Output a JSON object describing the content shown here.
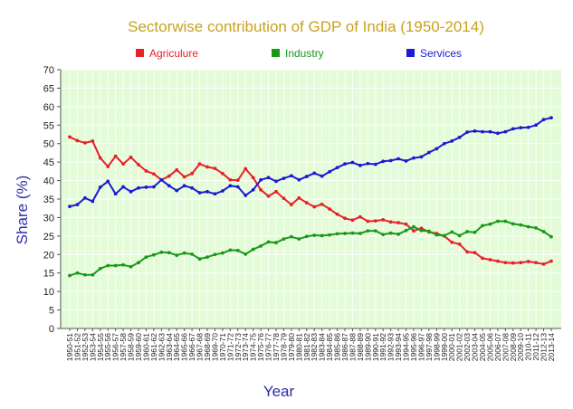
{
  "chart_data": {
    "type": "line",
    "title": "Sectorwise contribution of GDP of India (1950-2014)",
    "xlabel": "Year",
    "ylabel": "Share (%)",
    "ylim": [
      0,
      70
    ],
    "yticks": [
      0,
      5,
      10,
      15,
      20,
      25,
      30,
      35,
      40,
      45,
      50,
      55,
      60,
      65,
      70
    ],
    "grid": true,
    "legend_position": "top",
    "colors": {
      "title": "#c8a21e",
      "axis_label": "#2c2ca8",
      "plot_background": "#e4fbd8",
      "grid": "#ffffff"
    },
    "categories": [
      "1950-51",
      "1951-52",
      "1952-53",
      "1953-54",
      "1954-55",
      "1955-56",
      "1956-57",
      "1957-58",
      "1958-59",
      "1959-60",
      "1960-61",
      "1961-62",
      "1962-63",
      "1963-64",
      "1964-65",
      "1965-66",
      "1966-67",
      "1967-68",
      "1968-69",
      "1969-70",
      "1970-71",
      "1971-72",
      "1972-73",
      "1973-74",
      "1974-75",
      "1975-76",
      "1976-77",
      "1977-78",
      "1978-79",
      "1979-80",
      "1980-81",
      "1981-82",
      "1982-83",
      "1983-84",
      "1984-85",
      "1985-86",
      "1986-87",
      "1987-88",
      "1988-89",
      "1989-90",
      "1990-91",
      "1991-92",
      "1992-93",
      "1993-94",
      "1994-95",
      "1995-96",
      "1996-97",
      "1997-98",
      "1998-99",
      "1999-00",
      "2000-01",
      "2001-02",
      "2002-03",
      "2003-04",
      "2004-05",
      "2005-06",
      "2006-07",
      "2007-08",
      "2008-09",
      "2009-10",
      "2010-11",
      "2011-12",
      "2012-13",
      "2013-14"
    ],
    "series": [
      {
        "name": "Agriculure",
        "color": "#e8202a",
        "values": [
          51.8,
          50.8,
          50.2,
          50.7,
          46.1,
          43.8,
          46.6,
          44.5,
          46.3,
          44.3,
          42.6,
          41.8,
          40.2,
          41.2,
          42.9,
          41.0,
          41.9,
          44.5,
          43.7,
          43.3,
          41.9,
          40.2,
          40.1,
          43.2,
          40.8,
          37.5,
          35.8,
          37.0,
          35.2,
          33.5,
          35.3,
          34.0,
          32.9,
          33.6,
          32.3,
          30.9,
          29.8,
          29.3,
          30.2,
          29.0,
          29.1,
          29.4,
          28.8,
          28.6,
          28.2,
          26.4,
          27.1,
          26.1,
          25.7,
          25.0,
          23.3,
          22.8,
          20.7,
          20.5,
          19.0,
          18.6,
          18.2,
          17.8,
          17.7,
          17.8,
          18.1,
          17.8,
          17.4,
          18.2
        ]
      },
      {
        "name": "Industry",
        "color": "#189a18",
        "values": [
          14.3,
          15.0,
          14.5,
          14.5,
          16.2,
          17.0,
          17.0,
          17.2,
          16.7,
          17.8,
          19.3,
          19.9,
          20.6,
          20.5,
          19.8,
          20.4,
          20.1,
          18.8,
          19.3,
          20.0,
          20.4,
          21.2,
          21.1,
          20.1,
          21.4,
          22.3,
          23.4,
          23.2,
          24.2,
          24.8,
          24.2,
          24.9,
          25.2,
          25.1,
          25.3,
          25.6,
          25.7,
          25.8,
          25.7,
          26.4,
          26.4,
          25.4,
          25.8,
          25.5,
          26.5,
          27.5,
          26.5,
          26.3,
          25.3,
          25.1,
          26.1,
          25.1,
          26.2,
          26.0,
          27.8,
          28.2,
          29.0,
          29.0,
          28.3,
          28.0,
          27.5,
          27.2,
          26.2,
          24.8
        ]
      },
      {
        "name": "Services",
        "color": "#1c1ad2",
        "values": [
          33.0,
          33.5,
          35.3,
          34.4,
          38.2,
          39.8,
          36.4,
          38.3,
          37.0,
          38.0,
          38.2,
          38.3,
          40.2,
          38.6,
          37.3,
          38.6,
          38.0,
          36.7,
          37.0,
          36.4,
          37.2,
          38.6,
          38.3,
          36.0,
          37.5,
          40.2,
          40.8,
          39.8,
          40.6,
          41.3,
          40.2,
          41.1,
          42.0,
          41.2,
          42.4,
          43.5,
          44.5,
          44.9,
          44.1,
          44.6,
          44.4,
          45.2,
          45.4,
          45.9,
          45.3,
          46.1,
          46.4,
          47.6,
          48.6,
          50.0,
          50.7,
          51.7,
          53.1,
          53.4,
          53.2,
          53.2,
          52.8,
          53.2,
          54.0,
          54.3,
          54.4,
          55.0,
          56.5,
          57.0
        ]
      }
    ]
  }
}
